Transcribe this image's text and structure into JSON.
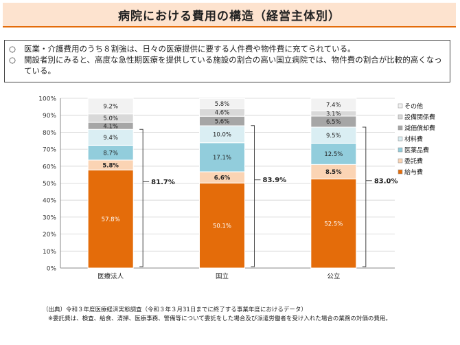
{
  "header": {
    "title": "病院における費用の構造（経営主体別）"
  },
  "summary": {
    "mark": "○",
    "lines": [
      "医業・介護費用のうち８割強は、日々の医療提供に要する人件費や物件費に充てられている。",
      "開設者別にみると、高度な急性期医療を提供している施設の割合の高い国立病院では、物件費の割合が比較的高くなっている。"
    ]
  },
  "chart_data": {
    "type": "bar",
    "stacked": true,
    "percent": true,
    "categories": [
      "医療法人",
      "国立",
      "公立"
    ],
    "ylim": [
      0,
      100
    ],
    "yticks": [
      "0%",
      "10%",
      "20%",
      "30%",
      "40%",
      "50%",
      "60%",
      "70%",
      "80%",
      "90%",
      "100%"
    ],
    "series": [
      {
        "name": "給与費",
        "color": "#e46c0a",
        "values": [
          57.8,
          50.1,
          52.5
        ],
        "labels": [
          "57.8%",
          "50.1%",
          "52.5%"
        ]
      },
      {
        "name": "委託費",
        "color": "#fbd4b4",
        "values": [
          5.8,
          6.6,
          8.5
        ],
        "labels": [
          "5.8%",
          "6.6%",
          "8.5%"
        ]
      },
      {
        "name": "医薬品費",
        "color": "#92cddc",
        "values": [
          8.7,
          17.1,
          12.5
        ],
        "labels": [
          "8.7%",
          "17.1%",
          "12.5%"
        ]
      },
      {
        "name": "材料費",
        "color": "#daeef3",
        "values": [
          9.4,
          10.0,
          9.5
        ],
        "labels": [
          "9.4%",
          "10.0%",
          "9.5%"
        ]
      },
      {
        "name": "減価償却費",
        "color": "#a6a6a6",
        "values": [
          4.1,
          5.6,
          6.5
        ],
        "labels": [
          "4.1%",
          "5.6%",
          "6.5%"
        ]
      },
      {
        "name": "設備関係費",
        "color": "#d9d9d9",
        "values": [
          5.0,
          4.6,
          3.1
        ],
        "labels": [
          "5.0%",
          "4.6%",
          "3.1%"
        ]
      },
      {
        "name": "その他",
        "color": "#f2f2f2",
        "values": [
          9.2,
          5.8,
          7.4
        ],
        "labels": [
          "9.2%",
          "5.8%",
          "7.4%"
        ]
      }
    ],
    "brackets": {
      "spans_series": [
        "給与費",
        "委託費",
        "医薬品費",
        "材料費"
      ],
      "values": [
        81.7,
        83.9,
        83.0
      ],
      "labels": [
        "81.7%",
        "83.9%",
        "83.0%"
      ]
    },
    "legend_position": "right",
    "grid": true
  },
  "notes": [
    "（出典）令和３年度医療経済実態調査（令和３年３月31日までに終了する事業年度におけるデータ）",
    "※委託費は、検査、給食、清掃、医療事務、警備等について委託をした場合及び派遣労働者を受け入れた場合の業務の対価の費用。"
  ]
}
